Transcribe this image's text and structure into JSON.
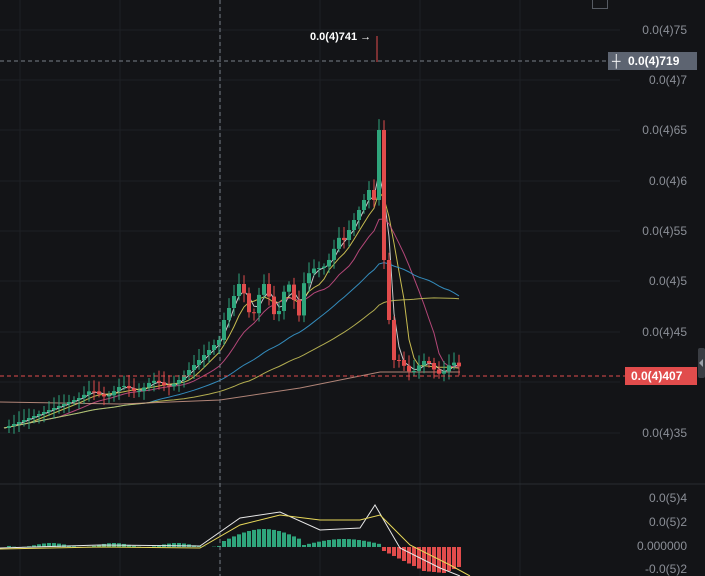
{
  "price_axis": {
    "labels": [
      "0.0(4)75",
      "0.0(4)7",
      "0.0(4)65",
      "0.0(4)6",
      "0.0(4)55",
      "0.0(4)5",
      "0.0(4)45",
      "0.0(4)35"
    ]
  },
  "crosshair_label": "0.0(4)719",
  "last_price_label": "0.0(4)407",
  "peak_annotation": "0.0(4)741 →",
  "macd_axis": {
    "labels": [
      "0.0(5)4",
      "0.0(5)2",
      "0.000000",
      "-0.0(5)2"
    ]
  },
  "colors": {
    "background": "#131417",
    "up": "#2fa57c",
    "down": "#e14c4c",
    "ma_fast": "#e7e7e7",
    "ma_mid": "#e8d85a",
    "ma_slow": "#d0508a",
    "ma_long": "#3aa0d8",
    "ma_longer": "#cfc85a"
  },
  "icons": [
    "plus-crosshair-icon",
    "scroll-handle-icon",
    "corner-settings-icon"
  ]
}
